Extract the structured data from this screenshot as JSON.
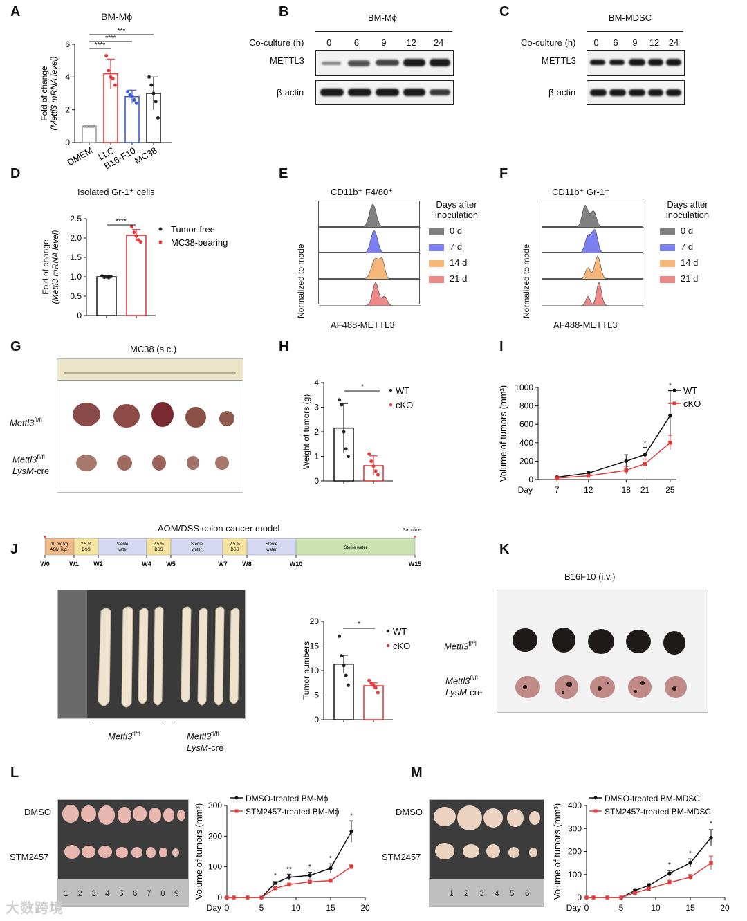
{
  "panels": {
    "A": {
      "label": "A",
      "title": "BM-Mϕ",
      "ylabel1": "Fold of change",
      "ylabel2": "(Mettl3 mRNA level)",
      "sig": [
        "***",
        "****",
        "****"
      ],
      "chart_data": {
        "type": "bar",
        "categories": [
          "DMEM",
          "LLC",
          "B16-F10",
          "MC38"
        ],
        "values": [
          1.0,
          4.2,
          2.8,
          3.0
        ],
        "errors": [
          0.05,
          0.9,
          0.4,
          1.0
        ],
        "colors": [
          "#999999",
          "#e23b3b",
          "#3a5bd9",
          "#222222"
        ],
        "ylim": [
          0,
          6
        ],
        "yticks": [
          0,
          2,
          4,
          6
        ],
        "points": [
          [
            1,
            1,
            1,
            1,
            1
          ],
          [
            5.3,
            4.4,
            4.0,
            3.9,
            3.5
          ],
          [
            3.1,
            2.9,
            2.8,
            2.6,
            2.4
          ],
          [
            4.0,
            3.5,
            3.0,
            2.5,
            1.5
          ]
        ]
      }
    },
    "B": {
      "label": "B",
      "title": "BM-Mϕ",
      "coculture_label": "Co-culture (h)",
      "timepoints": [
        "0",
        "6",
        "9",
        "12",
        "24"
      ],
      "rows": [
        "METTL3",
        "β-actin"
      ]
    },
    "C": {
      "label": "C",
      "title": "BM-MDSC",
      "coculture_label": "Co-culture (h)",
      "timepoints": [
        "0",
        "6",
        "9",
        "12",
        "24"
      ],
      "rows": [
        "METTL3",
        "β-actin"
      ]
    },
    "D": {
      "label": "D",
      "title": "Isolated Gr-1⁺ cells",
      "ylabel1": "Fold of change",
      "ylabel2": "(Mettl3 mRNA level)",
      "sig": "****",
      "legend": [
        "Tumor-free",
        "MC38-bearing"
      ],
      "chart_data": {
        "type": "bar",
        "categories": [
          "Tumor-free",
          "MC38-bearing"
        ],
        "values": [
          1.0,
          2.07
        ],
        "errors": [
          0.03,
          0.15
        ],
        "colors": [
          "#222222",
          "#e23b3b"
        ],
        "ylim": [
          0,
          2.5
        ],
        "yticks": [
          "0",
          "0.5",
          "1.0",
          "1.5",
          "2.0",
          "2.5"
        ],
        "points": [
          [
            1.02,
            0.99,
            1.0,
            0.98,
            1.01
          ],
          [
            2.3,
            2.15,
            2.05,
            1.95,
            1.9
          ]
        ]
      }
    },
    "E": {
      "label": "E",
      "title": "CD11b⁺ F4/80⁺",
      "xlabel": "AF488-METTL3",
      "ylabel": "Normalized to mode",
      "legend_title": [
        "Days after",
        "inoculation"
      ],
      "legend": [
        {
          "name": "0 d",
          "color": "#808080"
        },
        {
          "name": "7 d",
          "color": "#7b7ff0"
        },
        {
          "name": "14 d",
          "color": "#f5b77a"
        },
        {
          "name": "21 d",
          "color": "#ec8888"
        }
      ]
    },
    "F": {
      "label": "F",
      "title": "CD11b⁺ Gr-1⁺",
      "xlabel": "AF488-METTL3",
      "ylabel": "Normalized to mode",
      "legend_title": [
        "Days after",
        "inoculation"
      ],
      "legend": [
        {
          "name": "0 d",
          "color": "#808080"
        },
        {
          "name": "7 d",
          "color": "#7b7ff0"
        },
        {
          "name": "14 d",
          "color": "#f5b77a"
        },
        {
          "name": "21 d",
          "color": "#ec8888"
        }
      ]
    },
    "G": {
      "label": "G",
      "title": "MC38 (s.c.)",
      "row1": "Mettl3",
      "row1_sup": "fl/fl",
      "row2a": "Mettl3",
      "row2a_sup": "fl/fl",
      "row2b": "LysM",
      "row2b_suffix": "-cre"
    },
    "H": {
      "label": "H",
      "ylabel": "Weight of tumors (g)",
      "sig": "*",
      "legend": [
        "WT",
        "cKO"
      ],
      "chart_data": {
        "type": "bar",
        "categories": [
          "WT",
          "cKO"
        ],
        "values": [
          2.15,
          0.62
        ],
        "errors": [
          1.0,
          0.4
        ],
        "colors": [
          "#222222",
          "#e23b3b"
        ],
        "ylim": [
          0,
          4
        ],
        "yticks": [
          0,
          1,
          2,
          3,
          4
        ],
        "points": [
          [
            3.3,
            3.1,
            2.0,
            1.3,
            1.0
          ],
          [
            1.1,
            0.8,
            0.6,
            0.4,
            0.25
          ]
        ]
      }
    },
    "I": {
      "label": "I",
      "ylabel": "Volume of tumors (mm³)",
      "xlabel_prefix": "Day",
      "legend": [
        "WT",
        "cKO"
      ],
      "sig": [
        "*",
        "*"
      ],
      "chart_data": {
        "type": "line",
        "x": [
          7,
          12,
          18,
          21,
          25
        ],
        "series": [
          {
            "name": "WT",
            "values": [
              25,
              70,
              200,
              270,
              695
            ],
            "errors": [
              10,
              20,
              70,
              80,
              270
            ],
            "color": "#111111"
          },
          {
            "name": "cKO",
            "values": [
              15,
              40,
              100,
              170,
              400
            ],
            "errors": [
              8,
              15,
              40,
              50,
              80
            ],
            "color": "#e23b3b"
          }
        ],
        "ylim": [
          0,
          1000
        ],
        "yticks": [
          0,
          200,
          400,
          600,
          800,
          1000
        ],
        "xticks": [
          7,
          12,
          18,
          21,
          25
        ]
      }
    },
    "J": {
      "label": "J",
      "title": "AOM/DSS colon cancer model",
      "sacrifice": "Sacrifice",
      "segments": [
        {
          "label": "10 mg/kg AOM (i.p.)",
          "color": "#f0b98a"
        },
        {
          "label": "2.5 % DSS",
          "color": "#f7e3a0"
        },
        {
          "label": "Sterile water",
          "color": "#d4d8f0"
        },
        {
          "label": "2.5 % DSS",
          "color": "#f7e3a0"
        },
        {
          "label": "Sterile water",
          "color": "#d4d8f0"
        },
        {
          "label": "2.5 % DSS",
          "color": "#f7e3a0"
        },
        {
          "label": "Sterile water",
          "color": "#d4d8f0"
        },
        {
          "label": "Sterile water",
          "color": "#c9e2b0"
        }
      ],
      "weeks": [
        "W0",
        "W1",
        "W2",
        "W4",
        "W5",
        "W7",
        "W8",
        "W10",
        "W15"
      ],
      "group1": "Mettl3",
      "group1_sup": "fl/fl",
      "group2a": "Mettl3",
      "group2a_sup": "fl/fl",
      "group2b": "LysM",
      "group2b_suffix": "-cre",
      "ylabel": "Tumor numbers",
      "sig": "*",
      "legend": [
        "WT",
        "cKO"
      ],
      "chart_data": {
        "type": "bar",
        "categories": [
          "WT",
          "cKO"
        ],
        "values": [
          11.3,
          6.9
        ],
        "errors": [
          1.8,
          0.6
        ],
        "colors": [
          "#222222",
          "#e23b3b"
        ],
        "ylim": [
          0,
          20
        ],
        "yticks": [
          0,
          5,
          10,
          15,
          20
        ],
        "points": [
          [
            17,
            13,
            11,
            9,
            7
          ],
          [
            8,
            7.4,
            7,
            6.5,
            5.5
          ]
        ]
      }
    },
    "K": {
      "label": "K",
      "title": "B16F10 (i.v.)",
      "row1": "Mettl3",
      "row1_sup": "fl/fl",
      "row2a": "Mettl3",
      "row2a_sup": "fl/fl",
      "row2b": "LysM",
      "row2b_suffix": "-cre"
    },
    "L": {
      "label": "L",
      "row1": "DMSO",
      "row2": "STM2457",
      "ruler": [
        "1",
        "2",
        "3",
        "4",
        "5",
        "6",
        "7",
        "8",
        "9"
      ],
      "ylabel": "Volume of tumors (mm³)",
      "xlabel_prefix": "Day",
      "legend": [
        "DMSO-treated BM-Mϕ",
        "STM2457-treated BM-Mϕ"
      ],
      "sig": [
        "*",
        "**",
        "*",
        "*",
        "*"
      ],
      "chart_data": {
        "type": "line",
        "x": [
          0,
          1,
          3,
          5,
          7,
          9,
          12,
          15,
          18
        ],
        "series": [
          {
            "name": "DMSO-treated BM-Mϕ",
            "values": [
              0,
              0,
              0,
              0,
              47,
              66,
              72,
              95,
              215
            ],
            "errors": [
              0,
              0,
              0,
              0,
              5,
              10,
              10,
              15,
              35
            ],
            "color": "#111111"
          },
          {
            "name": "STM2457-treated BM-Mϕ",
            "values": [
              0,
              0,
              0,
              0,
              30,
              42,
              51,
              55,
              100
            ],
            "errors": [
              0,
              0,
              0,
              0,
              4,
              5,
              5,
              5,
              8
            ],
            "color": "#e23b3b"
          }
        ],
        "ylim": [
          0,
          300
        ],
        "yticks": [
          0,
          100,
          200,
          300
        ],
        "xlim": [
          0,
          20
        ],
        "xticks": [
          0,
          5,
          10,
          15,
          20
        ]
      }
    },
    "M": {
      "label": "M",
      "row1": "DMSO",
      "row2": "STM2457",
      "ruler": [
        "1",
        "2",
        "3",
        "4",
        "5",
        "6"
      ],
      "ylabel": "Volume of tumors (mm³)",
      "xlabel_prefix": "Day",
      "legend": [
        "DMSO-treated BM-MDSC",
        "STM2457-treated BM-MDSC"
      ],
      "sig": [
        "*",
        "*",
        "*"
      ],
      "chart_data": {
        "type": "line",
        "x": [
          0,
          1,
          3,
          5,
          7,
          9,
          12,
          15,
          18
        ],
        "series": [
          {
            "name": "DMSO-treated BM-MDSC",
            "values": [
              0,
              0,
              0,
              0,
              30,
              52,
              105,
              150,
              260
            ],
            "errors": [
              0,
              0,
              0,
              0,
              5,
              8,
              12,
              18,
              35
            ],
            "color": "#111111"
          },
          {
            "name": "STM2457-treated BM-MDSC",
            "values": [
              0,
              0,
              0,
              0,
              20,
              38,
              65,
              88,
              150
            ],
            "errors": [
              0,
              0,
              0,
              0,
              4,
              6,
              10,
              12,
              30
            ],
            "color": "#e23b3b"
          }
        ],
        "ylim": [
          0,
          400
        ],
        "yticks": [
          0,
          100,
          200,
          300,
          400
        ],
        "xlim": [
          0,
          20
        ],
        "xticks": [
          0,
          5,
          10,
          15,
          20
        ]
      }
    }
  },
  "watermark": "大数跨境"
}
